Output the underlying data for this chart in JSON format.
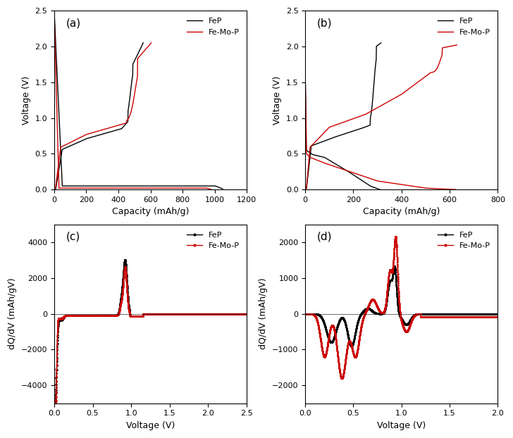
{
  "fig_width": 7.28,
  "fig_height": 6.22,
  "dpi": 100,
  "subplots": {
    "a": {
      "label": "(a)",
      "xlabel": "Capacity (mAh/g)",
      "ylabel": "Voltage (V)",
      "xlim": [
        0,
        1200
      ],
      "ylim": [
        0,
        2.5
      ],
      "xticks": [
        0,
        200,
        400,
        600,
        800,
        1000,
        1200
      ],
      "yticks": [
        0.0,
        0.5,
        1.0,
        1.5,
        2.0,
        2.5
      ]
    },
    "b": {
      "label": "(b)",
      "xlabel": "Capacity (mAh/g)",
      "ylabel": "Voltage (V)",
      "xlim": [
        0,
        800
      ],
      "ylim": [
        0,
        2.5
      ],
      "xticks": [
        0,
        200,
        400,
        600,
        800
      ],
      "yticks": [
        0.0,
        0.5,
        1.0,
        1.5,
        2.0,
        2.5
      ]
    },
    "c": {
      "label": "(c)",
      "xlabel": "Voltage (V)",
      "ylabel": "dQ/dV (mAh/gV)",
      "xlim": [
        0,
        2.5
      ],
      "ylim": [
        -5000,
        5000
      ],
      "xticks": [
        0.0,
        0.5,
        1.0,
        1.5,
        2.0,
        2.5
      ],
      "yticks": [
        -4000,
        -2000,
        0,
        2000,
        4000
      ]
    },
    "d": {
      "label": "(d)",
      "xlabel": "Voltage (V)",
      "ylabel": "dQ/dV (mAh/gV)",
      "xlim": [
        0,
        2.0
      ],
      "ylim": [
        -2500,
        2500
      ],
      "xticks": [
        0.0,
        0.5,
        1.0,
        1.5,
        2.0
      ],
      "yticks": [
        -2000,
        -1000,
        0,
        1000,
        2000
      ]
    }
  },
  "colors": {
    "FeP": "#000000",
    "FeMoP": "#cc0000"
  },
  "legend": {
    "FeP": "FeP",
    "FeMoP": "Fe-Mo-P"
  }
}
